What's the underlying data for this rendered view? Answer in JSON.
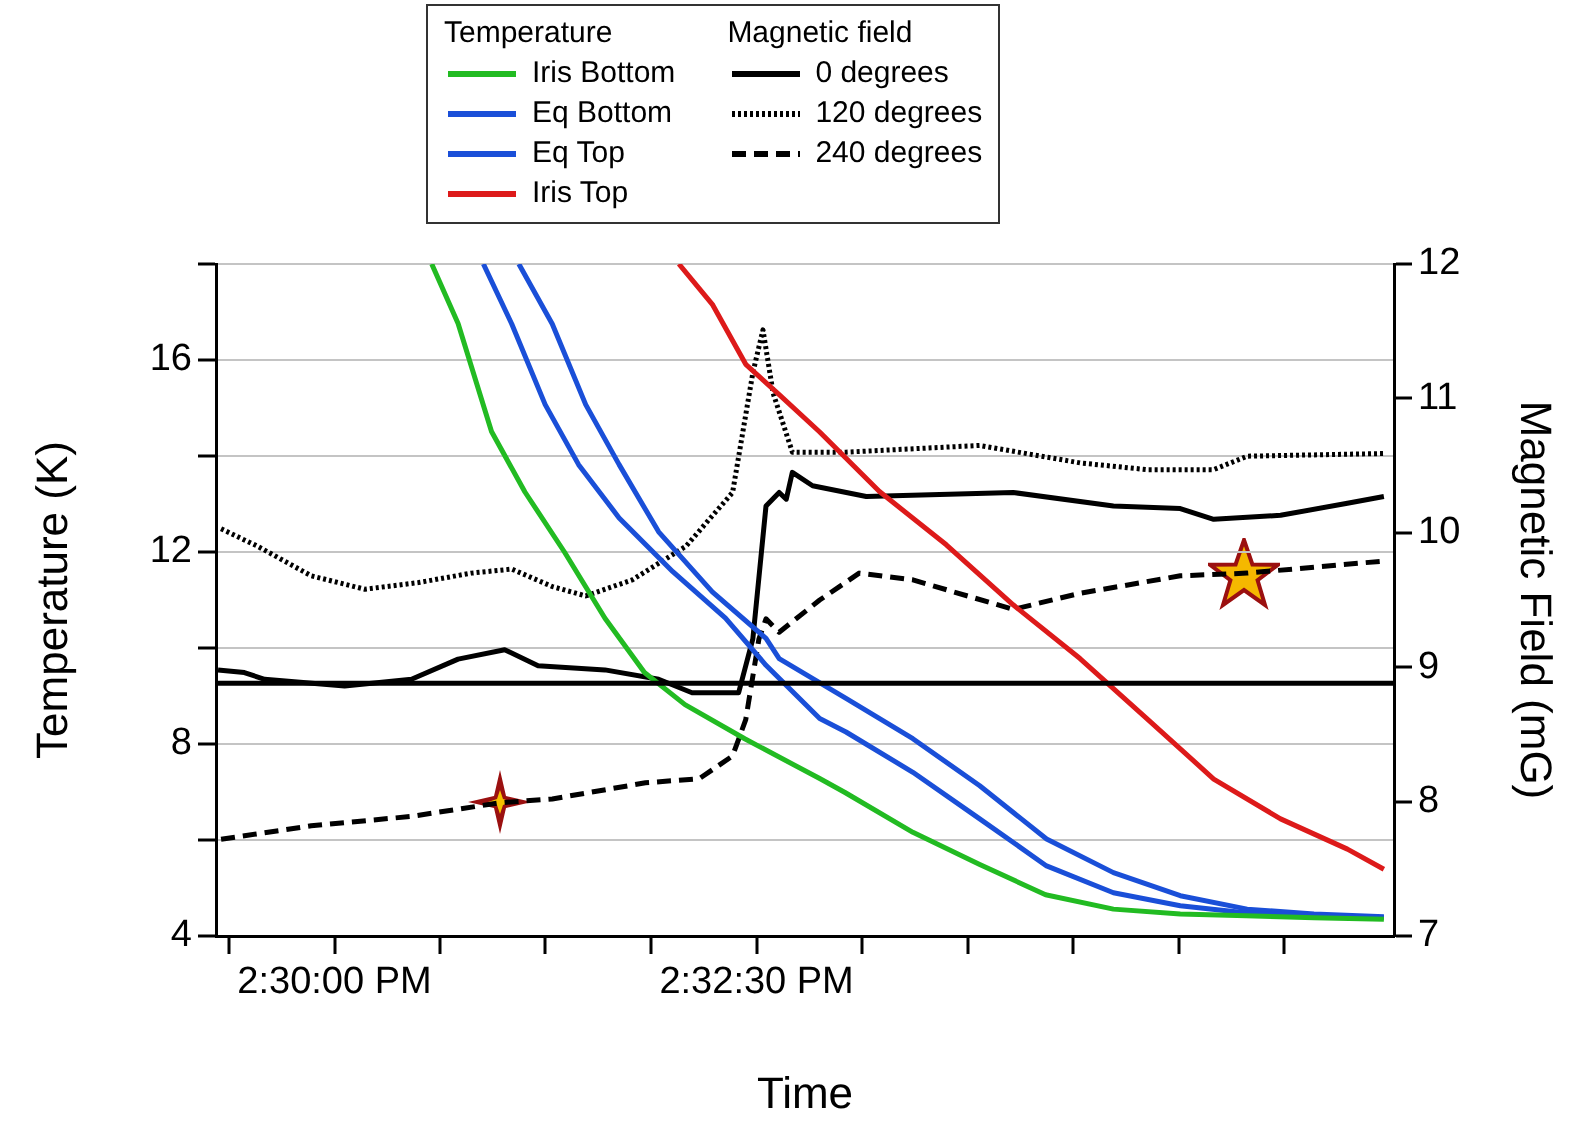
{
  "chart_data": {
    "type": "line",
    "xlabel": "Time",
    "ylabel": "Temperature (K)",
    "y2label": "Magnetic Field (mG)",
    "annotations": [
      "Temperature",
      "Magnetic field"
    ],
    "xlim": [
      14.4883,
      14.6046
    ],
    "xticks": [
      {
        "value": 14.48958,
        "label": null
      },
      {
        "value": 14.5,
        "label": "2:30:00 PM"
      },
      {
        "value": 14.51042,
        "label": null
      },
      {
        "value": 14.52083,
        "label": null
      },
      {
        "value": 14.53125,
        "label": null
      },
      {
        "value": 14.54167,
        "label": "2:32:30 PM"
      },
      {
        "value": 14.55208,
        "label": null
      },
      {
        "value": 14.5625,
        "label": null
      },
      {
        "value": 14.57292,
        "label": null
      },
      {
        "value": 14.58333,
        "label": null
      },
      {
        "value": 14.59375,
        "label": null
      }
    ],
    "ylim": [
      4,
      18
    ],
    "yticks": [
      4,
      {
        "value": 6,
        "label": null
      },
      8,
      {
        "value": 10,
        "label": null
      },
      12,
      {
        "value": 14,
        "label": null
      },
      16,
      {
        "value": 18,
        "label": null
      }
    ],
    "y2lim": [
      7,
      12
    ],
    "y2ticks": [
      7,
      8,
      9,
      10,
      11,
      12
    ],
    "grid": "y",
    "legend": "top",
    "marker": "none",
    "ref_lines": [
      {
        "axis": "y2",
        "value": 8.88,
        "color": "#000000"
      }
    ],
    "series": [
      {
        "name": "Iris Bottom",
        "color": "#22bb22",
        "line_style": "solid",
        "x": [
          14.5096,
          14.5122,
          14.5155,
          14.5188,
          14.5227,
          14.5267,
          14.5306,
          14.5346,
          14.5405,
          14.5479,
          14.5504,
          14.5571,
          14.5637,
          14.5702,
          14.5769,
          14.5835,
          14.59,
          14.5967,
          14.6036
        ],
        "values": [
          18.0,
          16.76,
          14.51,
          13.25,
          12.0,
          10.62,
          9.49,
          8.82,
          8.11,
          7.28,
          6.99,
          6.16,
          5.49,
          4.86,
          4.56,
          4.46,
          4.42,
          4.38,
          4.35
        ]
      },
      {
        "name": "Eq Bottom",
        "color": "#1a4fd8",
        "line_style": "solid",
        "x": [
          14.5147,
          14.5175,
          14.5208,
          14.5241,
          14.5281,
          14.5334,
          14.5386,
          14.5426,
          14.5479,
          14.5505,
          14.5571,
          14.5637,
          14.5703,
          14.5769,
          14.5835,
          14.5901,
          14.5967,
          14.6036
        ],
        "values": [
          18.0,
          16.75,
          15.07,
          13.82,
          12.71,
          11.59,
          10.62,
          9.64,
          8.53,
          8.25,
          7.41,
          6.44,
          5.46,
          4.9,
          4.63,
          4.48,
          4.42,
          4.38
        ]
      },
      {
        "name": "Eq Top",
        "color": "#1a4fd8",
        "line_style": "solid",
        "x": [
          14.5182,
          14.5215,
          14.5248,
          14.5281,
          14.532,
          14.5373,
          14.5426,
          14.5439,
          14.5505,
          14.5571,
          14.5637,
          14.5703,
          14.5769,
          14.5835,
          14.5901,
          14.5967,
          14.6036
        ],
        "values": [
          18.0,
          16.75,
          15.07,
          13.82,
          12.42,
          11.17,
          10.2,
          9.78,
          8.95,
          8.11,
          7.13,
          6.02,
          5.32,
          4.84,
          4.56,
          4.46,
          4.4
        ]
      },
      {
        "name": "Iris Top",
        "color": "#dd1a1a",
        "line_style": "solid",
        "x": [
          14.534,
          14.5373,
          14.5406,
          14.5439,
          14.5479,
          14.5538,
          14.5604,
          14.567,
          14.5736,
          14.5802,
          14.5868,
          14.5934,
          14.6,
          14.6036
        ],
        "values": [
          18.0,
          17.16,
          15.91,
          15.28,
          14.5,
          13.26,
          12.15,
          10.9,
          9.78,
          8.53,
          7.27,
          6.44,
          5.81,
          5.39
        ]
      },
      {
        "name": "0 degrees",
        "color": "#000000",
        "line_style": "solid",
        "axis": "y2",
        "x": [
          14.4885,
          14.4911,
          14.4931,
          14.501,
          14.5076,
          14.5122,
          14.5168,
          14.5201,
          14.5267,
          14.532,
          14.5353,
          14.5399,
          14.5413,
          14.5426,
          14.5439,
          14.5446,
          14.5452,
          14.5472,
          14.5525,
          14.567,
          14.5769,
          14.5835,
          14.5868,
          14.5934,
          14.6,
          14.6036
        ],
        "values": [
          8.98,
          8.96,
          8.91,
          8.86,
          8.91,
          9.06,
          9.13,
          9.01,
          8.98,
          8.91,
          8.81,
          8.81,
          9.21,
          10.2,
          10.3,
          10.25,
          10.45,
          10.35,
          10.27,
          10.3,
          10.2,
          10.18,
          10.1,
          10.13,
          10.22,
          10.27
        ]
      },
      {
        "name": "120 degrees",
        "color": "#000000",
        "line_style": "dotted",
        "axis": "y2",
        "x": [
          14.4888,
          14.4924,
          14.4977,
          14.503,
          14.5083,
          14.5135,
          14.5175,
          14.5215,
          14.5248,
          14.5294,
          14.5347,
          14.5393,
          14.5413,
          14.5423,
          14.5433,
          14.5452,
          14.5505,
          14.5637,
          14.5736,
          14.5802,
          14.5868,
          14.5901,
          14.6036
        ],
        "values": [
          10.03,
          9.9,
          9.68,
          9.58,
          9.63,
          9.7,
          9.73,
          9.6,
          9.53,
          9.65,
          9.9,
          10.3,
          11.19,
          11.51,
          11.04,
          10.6,
          10.6,
          10.65,
          10.52,
          10.47,
          10.47,
          10.57,
          10.59
        ]
      },
      {
        "name": "240 degrees",
        "color": "#000000",
        "line_style": "dashed",
        "axis": "y2",
        "x": [
          14.4888,
          14.4977,
          14.5076,
          14.5162,
          14.5215,
          14.5307,
          14.536,
          14.5393,
          14.5406,
          14.5419,
          14.5426,
          14.5439,
          14.5479,
          14.5518,
          14.5571,
          14.567,
          14.5736,
          14.5835,
          14.5901,
          14.6036
        ],
        "values": [
          7.72,
          7.82,
          7.89,
          7.99,
          8.02,
          8.14,
          8.17,
          8.34,
          8.61,
          9.21,
          9.36,
          9.26,
          9.5,
          9.7,
          9.65,
          9.43,
          9.55,
          9.68,
          9.7,
          9.79
        ]
      }
    ]
  }
}
